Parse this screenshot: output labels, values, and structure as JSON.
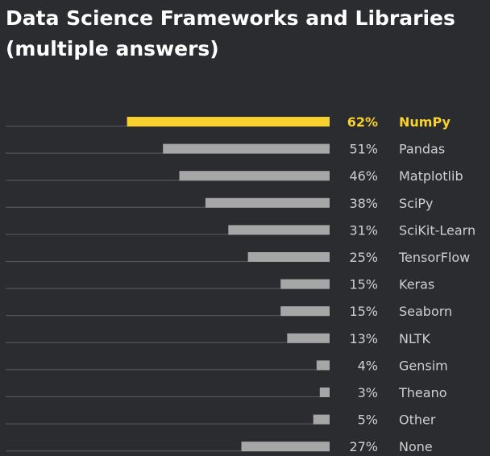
{
  "title_line1": "Data Science Frameworks and Libraries",
  "title_line2": "(multiple answers)",
  "colors": {
    "background": "#2b2c30",
    "highlight": "#f7d12c",
    "bar": "#a6a6a6",
    "baseline": "#5a5b60",
    "text": "#cfcfcf",
    "title": "#ffffff"
  },
  "chart_data": {
    "type": "bar",
    "orientation": "horizontal",
    "title": "Data Science Frameworks and Libraries (multiple answers)",
    "unit": "%",
    "xlim": [
      0,
      100
    ],
    "highlight_index": 0,
    "categories": [
      "NumPy",
      "Pandas",
      "Matplotlib",
      "SciPy",
      "SciKit-Learn",
      "TensorFlow",
      "Keras",
      "Seaborn",
      "NLTK",
      "Gensim",
      "Theano",
      "Other",
      "None"
    ],
    "values": [
      62,
      51,
      46,
      38,
      31,
      25,
      15,
      15,
      13,
      4,
      3,
      5,
      27
    ],
    "value_labels": [
      "62%",
      "51%",
      "46%",
      "38%",
      "31%",
      "25%",
      "15%",
      "15%",
      "13%",
      "4%",
      "3%",
      "5%",
      "27%"
    ]
  }
}
